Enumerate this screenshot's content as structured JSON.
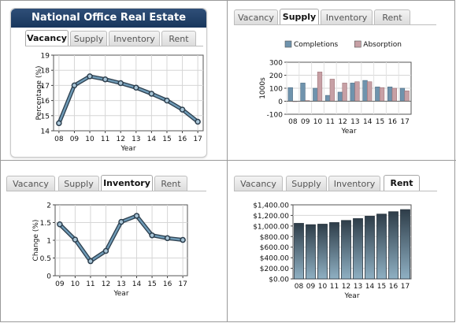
{
  "page": {
    "title": "National Office Real Estate Trends"
  },
  "tabs": [
    "Vacancy",
    "Supply",
    "Inventory",
    "Rent"
  ],
  "colors": {
    "header_top": "#2f4f78",
    "header_bottom": "#18365c",
    "line_stroke": "#2d3f4e",
    "line_fill": "#6f9bb7",
    "completions": "#6f93ad",
    "absorption": "#c7a0a5",
    "rent_top": "#2e3d49",
    "rent_bottom": "#8fb0c3"
  },
  "chart_data": [
    {
      "id": "vacancy",
      "type": "line",
      "active_tab": "Vacancy",
      "ylabel": "Percentage (%)",
      "xlabel": "Year",
      "categories": [
        "08",
        "09",
        "10",
        "11",
        "12",
        "13",
        "14",
        "15",
        "16",
        "17"
      ],
      "series": [
        {
          "values": [
            14.5,
            17.0,
            17.6,
            17.4,
            17.15,
            16.85,
            16.45,
            16.0,
            15.4,
            14.6
          ]
        }
      ],
      "ylim": [
        14,
        19
      ],
      "yticks": [
        14,
        15,
        16,
        17,
        18,
        19
      ],
      "ytick_labels": [
        "14",
        "15",
        "16",
        "17",
        "18",
        "19"
      ],
      "grid": true
    },
    {
      "id": "supply",
      "type": "bar",
      "active_tab": "Supply",
      "ylabel": "1000s",
      "xlabel": "Year",
      "categories": [
        "08",
        "09",
        "10",
        "11",
        "12",
        "13",
        "14",
        "15",
        "16",
        "17"
      ],
      "series": [
        {
          "name": "Completions",
          "values": [
            105,
            140,
            100,
            45,
            70,
            140,
            160,
            110,
            110,
            100
          ]
        },
        {
          "name": "Absorption",
          "values": [
            0,
            5,
            225,
            170,
            140,
            150,
            150,
            105,
            100,
            80
          ]
        }
      ],
      "ylim": [
        -100,
        300
      ],
      "yticks": [
        -100,
        0,
        100,
        200,
        300
      ],
      "ytick_labels": [
        "-100",
        "0",
        "100",
        "200",
        "300"
      ],
      "legend": "top",
      "grid": true
    },
    {
      "id": "inventory",
      "type": "line",
      "active_tab": "Inventory",
      "ylabel": "Change (%)",
      "xlabel": "Year",
      "categories": [
        "09",
        "10",
        "11",
        "12",
        "13",
        "14",
        "15",
        "16",
        "17"
      ],
      "series": [
        {
          "values": [
            1.45,
            1.02,
            0.41,
            0.7,
            1.52,
            1.69,
            1.14,
            1.06,
            1.01
          ]
        }
      ],
      "ylim": [
        0,
        2
      ],
      "yticks": [
        0,
        0.5,
        1,
        1.5,
        2
      ],
      "ytick_labels": [
        "0",
        "0.5",
        "1",
        "1.5",
        "2"
      ],
      "grid": true
    },
    {
      "id": "rent",
      "type": "bar",
      "active_tab": "Rent",
      "ylabel": "",
      "xlabel": "Year",
      "categories": [
        "08",
        "09",
        "10",
        "11",
        "12",
        "13",
        "14",
        "15",
        "16",
        "17"
      ],
      "series": [
        {
          "values": [
            1050,
            1025,
            1035,
            1065,
            1105,
            1140,
            1185,
            1225,
            1270,
            1310
          ]
        }
      ],
      "ylim": [
        0,
        1400
      ],
      "yticks": [
        0,
        200,
        400,
        600,
        800,
        1000,
        1200,
        1400
      ],
      "ytick_labels": [
        "$0.00",
        "$200.00",
        "$400.00",
        "$600.00",
        "$800.00",
        "$1,000.00",
        "$1,200.00",
        "$1,400.00"
      ],
      "grid": true
    }
  ]
}
